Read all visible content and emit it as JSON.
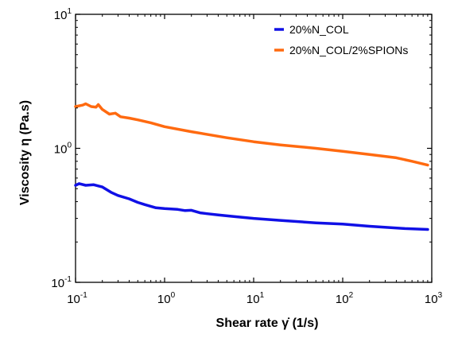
{
  "chart_data": {
    "type": "line",
    "x_scale": "log",
    "y_scale": "log",
    "xlim": [
      0.1,
      1000
    ],
    "ylim": [
      0.1,
      10
    ],
    "xlabel": "Shear rate  γ̇  (1/s)",
    "ylabel": "Viscosity  η  (Pa.s)",
    "x_ticks": [
      {
        "value": 0.1,
        "base": "10",
        "exp": "-1"
      },
      {
        "value": 1,
        "base": "10",
        "exp": "0"
      },
      {
        "value": 10,
        "base": "10",
        "exp": "1"
      },
      {
        "value": 100,
        "base": "10",
        "exp": "2"
      },
      {
        "value": 1000,
        "base": "10",
        "exp": "3"
      }
    ],
    "y_ticks": [
      {
        "value": 0.1,
        "base": "10",
        "exp": "-1"
      },
      {
        "value": 1,
        "base": "10",
        "exp": "0"
      },
      {
        "value": 10,
        "base": "10",
        "exp": "1"
      }
    ],
    "legend_position": "top-right",
    "series": [
      {
        "name": "20%N_COL",
        "color": "#1010e6",
        "points": [
          [
            0.1,
            0.53
          ],
          [
            0.11,
            0.545
          ],
          [
            0.13,
            0.53
          ],
          [
            0.16,
            0.535
          ],
          [
            0.2,
            0.515
          ],
          [
            0.25,
            0.47
          ],
          [
            0.3,
            0.445
          ],
          [
            0.4,
            0.42
          ],
          [
            0.5,
            0.395
          ],
          [
            0.6,
            0.38
          ],
          [
            0.8,
            0.36
          ],
          [
            1.0,
            0.355
          ],
          [
            1.4,
            0.35
          ],
          [
            1.7,
            0.343
          ],
          [
            2.0,
            0.345
          ],
          [
            2.5,
            0.33
          ],
          [
            3.0,
            0.325
          ],
          [
            4.0,
            0.318
          ],
          [
            6.0,
            0.31
          ],
          [
            10,
            0.3
          ],
          [
            20,
            0.29
          ],
          [
            50,
            0.278
          ],
          [
            100,
            0.272
          ],
          [
            200,
            0.262
          ],
          [
            500,
            0.252
          ],
          [
            900,
            0.248
          ]
        ]
      },
      {
        "name": "20%N_COL/2%SPIONs",
        "color": "#ff6a10",
        "points": [
          [
            0.1,
            2.05
          ],
          [
            0.12,
            2.1
          ],
          [
            0.13,
            2.15
          ],
          [
            0.15,
            2.05
          ],
          [
            0.17,
            2.03
          ],
          [
            0.18,
            2.12
          ],
          [
            0.2,
            1.95
          ],
          [
            0.24,
            1.8
          ],
          [
            0.28,
            1.83
          ],
          [
            0.32,
            1.72
          ],
          [
            0.4,
            1.68
          ],
          [
            0.5,
            1.63
          ],
          [
            0.7,
            1.55
          ],
          [
            1.0,
            1.45
          ],
          [
            2.0,
            1.33
          ],
          [
            5.0,
            1.2
          ],
          [
            10,
            1.12
          ],
          [
            20,
            1.06
          ],
          [
            50,
            1.0
          ],
          [
            100,
            0.95
          ],
          [
            200,
            0.9
          ],
          [
            400,
            0.85
          ],
          [
            600,
            0.8
          ],
          [
            900,
            0.75
          ]
        ]
      }
    ]
  }
}
